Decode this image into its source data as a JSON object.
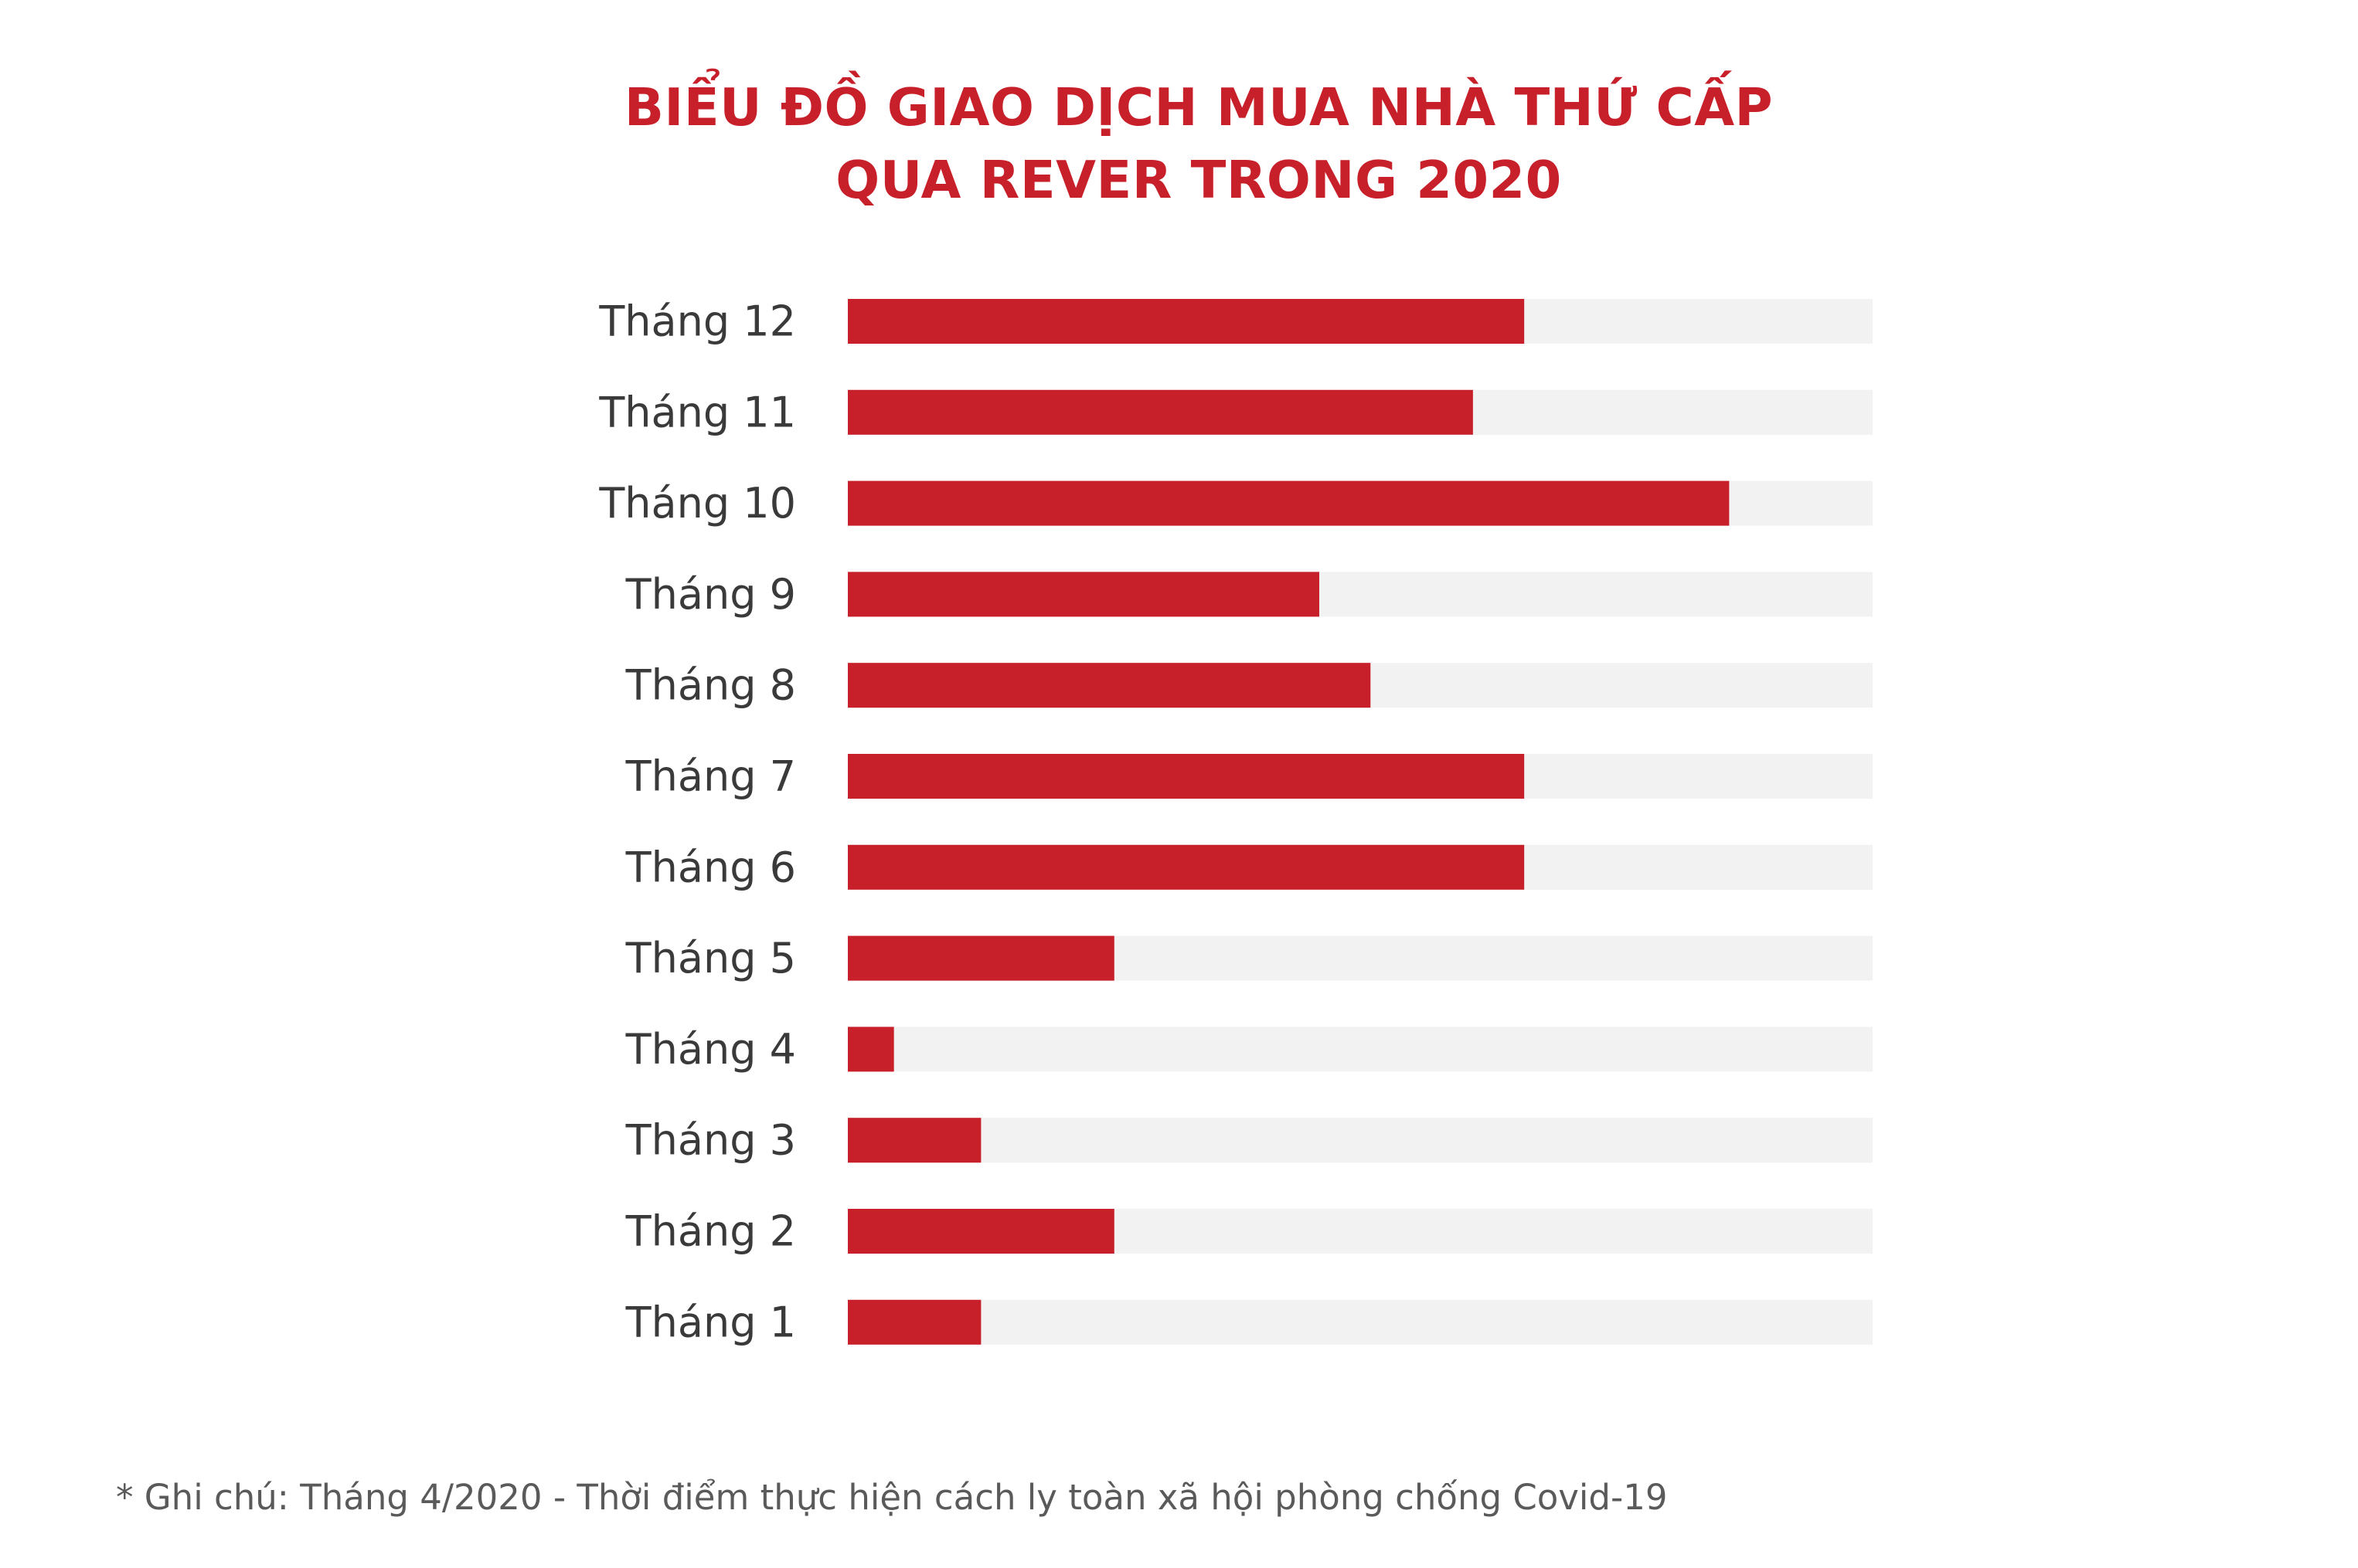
{
  "chart_data": {
    "type": "bar",
    "orientation": "horizontal",
    "title": [
      "BIỂU ĐỒ GIAO DỊCH MUA NHÀ THỨ CẤP",
      "QUA REVER  TRONG 2020"
    ],
    "categories": [
      "Tháng 12",
      "Tháng 11",
      "Tháng 10",
      "Tháng 9",
      "Tháng 8",
      "Tháng 7",
      "Tháng 6",
      "Tháng 5",
      "Tháng 4",
      "Tháng 3",
      "Tháng 2",
      "Tháng 1"
    ],
    "values": [
      66,
      61,
      86,
      46,
      51,
      66,
      66,
      26,
      4.5,
      13,
      26,
      13
    ],
    "xlim": [
      0,
      100
    ],
    "grid": false,
    "legend": "none",
    "bar_color": "#c8202a",
    "track_color": "#f2f2f2"
  },
  "note": "* Ghi chú: Tháng 4/2020 - Thời điểm thực hiện cách ly toàn xã hội phòng chống Covid-19"
}
